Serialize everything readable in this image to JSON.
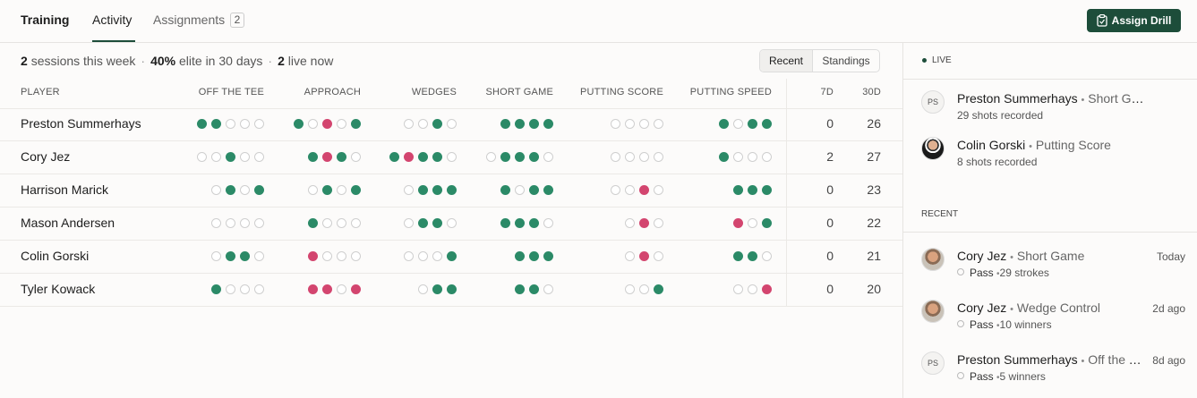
{
  "nav": {
    "tabs": [
      "Training",
      "Activity",
      "Assignments"
    ],
    "assignments_badge": 2,
    "button": "Assign Drill"
  },
  "summary": {
    "items": [
      {
        "count": "2",
        "text": "sessions this week"
      },
      {
        "count": "40%",
        "text": "elite in 30 days"
      },
      {
        "count": "2",
        "text": "live now"
      }
    ],
    "separator": "·"
  },
  "toggle": [
    "Recent",
    "Standings"
  ],
  "table": {
    "columns": [
      "PLAYER",
      "OFF THE TEE",
      "APPROACH",
      "WEDGES",
      "SHORT GAME",
      "PUTTING SCORE",
      "PUTTING SPEED",
      "7D",
      "30D"
    ],
    "rows": [
      {
        "player": "Preston Summerhays",
        "dots": [
          "ggooo",
          "gorog",
          "oogo",
          "gggg",
          "oooo",
          "gogg"
        ],
        "d7": 0,
        "d30": 26
      },
      {
        "player": "Cory Jez",
        "dots": [
          "oogoo",
          "grgo",
          "grggo",
          "ogggo",
          "oooo",
          "gooo"
        ],
        "d7": 2,
        "d30": 27
      },
      {
        "player": "Harrison Marick",
        "dots": [
          "ogog",
          "ogog",
          "oggg",
          "gogg",
          "ooro",
          "ggg"
        ],
        "d7": 0,
        "d30": 23
      },
      {
        "player": "Mason Andersen",
        "dots": [
          "oooo",
          "gooo",
          "oggo",
          "gggo",
          "oro",
          "rog"
        ],
        "d7": 0,
        "d30": 22
      },
      {
        "player": "Colin Gorski",
        "dots": [
          "oggo",
          "rooo",
          "ooog",
          "ggg",
          "oro",
          "ggo"
        ],
        "d7": 0,
        "d30": 21
      },
      {
        "player": "Tyler Kowack",
        "dots": [
          "gooo",
          "rror",
          "ogg",
          "ggo",
          "oog",
          "oor"
        ],
        "d7": 0,
        "d30": 20
      }
    ]
  },
  "live": {
    "title": "LIVE",
    "bullet": "•",
    "items": [
      {
        "initials": "PS",
        "name": "Preston Summerhays",
        "skill": "Short Game",
        "detail": "29 shots recorded"
      },
      {
        "name": "Colin Gorski",
        "skill": "Putting Score",
        "detail": "8 shots recorded"
      }
    ]
  },
  "recent": {
    "title": "RECENT",
    "items": [
      {
        "name": "Cory Jez",
        "skill": "Short Game",
        "status": "Pass",
        "detail": "29 strokes",
        "time": "Today"
      },
      {
        "name": "Cory Jez",
        "skill": "Wedge Control",
        "status": "Pass",
        "detail": "10 winners",
        "time": "2d ago"
      },
      {
        "initials": "PS",
        "name": "Preston Summerhays",
        "skill": "Off the T…",
        "status": "Pass",
        "detail": "5 winners",
        "time": "8d ago"
      }
    ]
  }
}
